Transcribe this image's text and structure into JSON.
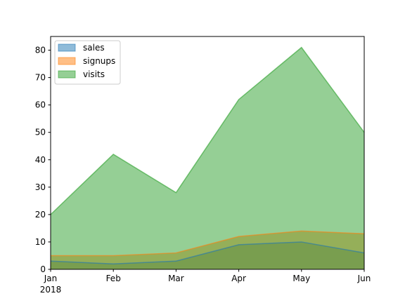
{
  "chart_data": {
    "type": "area",
    "stacked": false,
    "title": "",
    "xlabel": "",
    "ylabel": "",
    "x_year_label": "2018",
    "categories": [
      "Jan",
      "Feb",
      "Mar",
      "Apr",
      "May",
      "Jun"
    ],
    "ylim": [
      0,
      85
    ],
    "yticks": [
      0,
      10,
      20,
      30,
      40,
      50,
      60,
      70,
      80
    ],
    "grid": false,
    "legend_position": "top-left",
    "series": [
      {
        "name": "sales",
        "color": "#1f77b4",
        "values": [
          3,
          2,
          3,
          9,
          10,
          6
        ]
      },
      {
        "name": "signups",
        "color": "#ff7f0e",
        "values": [
          5,
          5,
          6,
          12,
          14,
          13
        ]
      },
      {
        "name": "visits",
        "color": "#2ca02c",
        "values": [
          20,
          42,
          28,
          62,
          81,
          50
        ]
      }
    ]
  }
}
